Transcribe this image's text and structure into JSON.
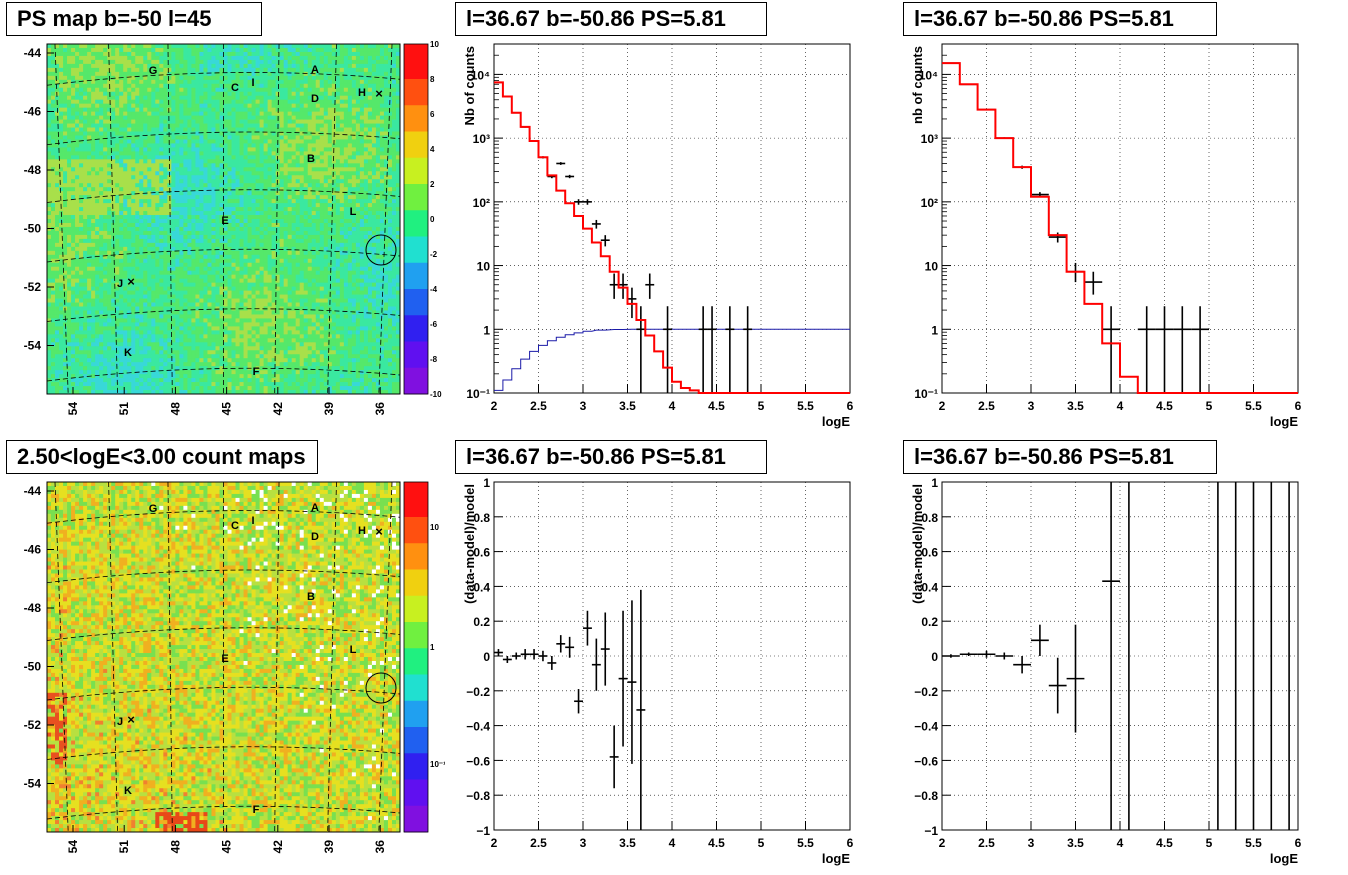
{
  "titles": {
    "map_ps": "PS map b=-50 l=45",
    "map_counts": "2.50<logE<3.00 count maps",
    "spec_left": "l=36.67 b=-50.86 PS=5.81",
    "spec_right": "l=36.67 b=-50.86 PS=5.81",
    "res_left": "l=36.67 b=-50.86 PS=5.81",
    "res_right": "l=36.67 b=-50.86 PS=5.81"
  },
  "colors": {
    "model_line": "#ff0000",
    "ps_line": "#1a1aa8",
    "data_points": "#000000",
    "grid": "#000000"
  },
  "chart_data": [
    {
      "id": "map_ps",
      "type": "heatmap",
      "title": "PS map b=-50 l=45",
      "y_ticks": [
        "-44",
        "-46",
        "-48",
        "-50",
        "-52",
        "-54"
      ],
      "x_ticks": [
        "54",
        "51",
        "48",
        "45",
        "42",
        "39",
        "36"
      ],
      "colorbar_ticks": [
        "10",
        "8",
        "6",
        "4",
        "2",
        "0",
        "-2",
        "-4",
        "-6",
        "-8",
        "-10"
      ],
      "zlim": [
        -10,
        10
      ],
      "source_labels": [
        "G",
        "A",
        "C",
        "I",
        "D",
        "H",
        "B",
        "L",
        "E",
        "J",
        "K",
        "F"
      ]
    },
    {
      "id": "map_counts",
      "type": "heatmap",
      "title": "2.50<logE<3.00 count maps",
      "y_ticks": [
        "-44",
        "-46",
        "-48",
        "-50",
        "-52",
        "-54"
      ],
      "x_ticks": [
        "54",
        "51",
        "48",
        "45",
        "42",
        "39",
        "36"
      ],
      "colorbar_ticks": [
        "10",
        "1",
        "10⁻¹"
      ],
      "zscale": "log",
      "source_labels": [
        "G",
        "A",
        "C",
        "I",
        "D",
        "H",
        "B",
        "L",
        "E",
        "J",
        "K",
        "F"
      ]
    },
    {
      "id": "spec_left",
      "type": "line",
      "title": "l=36.67 b=-50.86 PS=5.81",
      "xlabel": "logE",
      "ylabel": "Nb of counts",
      "xlim": [
        2,
        6
      ],
      "ylim": [
        0.1,
        30000
      ],
      "yscale": "log",
      "x_ticks": [
        "2",
        "2.5",
        "3",
        "3.5",
        "4",
        "4.5",
        "5",
        "5.5",
        "6"
      ],
      "y_ticks": [
        "10⁻¹",
        "1",
        "10",
        "10²",
        "10³",
        "10⁴"
      ],
      "grid": true,
      "model_step": {
        "edges": [
          2,
          2.1,
          2.2,
          2.3,
          2.4,
          2.5,
          2.6,
          2.7,
          2.8,
          2.9,
          3,
          3.1,
          3.2,
          3.3,
          3.4,
          3.5,
          3.6,
          3.7,
          3.8,
          3.9,
          4,
          4.1,
          4.2,
          4.3,
          6
        ],
        "values": [
          7500,
          4500,
          2500,
          1500,
          900,
          500,
          260,
          150,
          95,
          60,
          38,
          23,
          14,
          8,
          4.5,
          2.5,
          1.4,
          0.8,
          0.45,
          0.25,
          0.15,
          0.12,
          0.11,
          0.1
        ]
      },
      "ps_curve": {
        "x": [
          2.05,
          2.15,
          2.25,
          2.35,
          2.45,
          2.55,
          2.65,
          2.75,
          2.85,
          2.95,
          3.05,
          3.2,
          3.4,
          3.6,
          4,
          6
        ],
        "y": [
          0.11,
          0.16,
          0.24,
          0.34,
          0.45,
          0.56,
          0.66,
          0.75,
          0.82,
          0.88,
          0.93,
          0.97,
          0.99,
          1,
          1,
          1
        ]
      },
      "data_points": [
        {
          "x": 2.05,
          "y": 7500,
          "ex": 0.05,
          "ey": [
            7400,
            7600
          ]
        },
        {
          "x": 2.15,
          "y": 4500,
          "ex": 0.05,
          "ey": [
            4400,
            4600
          ]
        },
        {
          "x": 2.25,
          "y": 2500,
          "ex": 0.05,
          "ey": [
            2450,
            2550
          ]
        },
        {
          "x": 2.35,
          "y": 1500,
          "ex": 0.05,
          "ey": [
            1460,
            1540
          ]
        },
        {
          "x": 2.45,
          "y": 900,
          "ex": 0.05,
          "ey": [
            870,
            930
          ]
        },
        {
          "x": 2.55,
          "y": 500,
          "ex": 0.05,
          "ey": [
            480,
            520
          ]
        },
        {
          "x": 2.65,
          "y": 250,
          "ex": 0.05,
          "ey": [
            235,
            265
          ]
        },
        {
          "x": 2.75,
          "y": 400,
          "ex": 0.05,
          "ey": [
            380,
            420
          ]
        },
        {
          "x": 2.85,
          "y": 250,
          "ex": 0.05,
          "ey": [
            235,
            265
          ]
        },
        {
          "x": 2.95,
          "y": 100,
          "ex": 0.05,
          "ey": [
            90,
            110
          ]
        },
        {
          "x": 3.05,
          "y": 100,
          "ex": 0.05,
          "ey": [
            90,
            110
          ]
        },
        {
          "x": 3.15,
          "y": 45,
          "ex": 0.05,
          "ey": [
            38,
            52
          ]
        },
        {
          "x": 3.25,
          "y": 25,
          "ex": 0.05,
          "ey": [
            20,
            30
          ]
        },
        {
          "x": 3.35,
          "y": 5,
          "ex": 0.05,
          "ey": [
            3,
            7.5
          ]
        },
        {
          "x": 3.45,
          "y": 5,
          "ex": 0.05,
          "ey": [
            3,
            7.5
          ]
        },
        {
          "x": 3.55,
          "y": 3,
          "ex": 0.05,
          "ey": [
            1.5,
            4.5
          ]
        },
        {
          "x": 3.75,
          "y": 5,
          "ex": 0.05,
          "ey": [
            3,
            7.5
          ]
        },
        {
          "x": 3.65,
          "y": 1,
          "ex": 0.05,
          "ey": [
            0.1,
            2.3
          ]
        },
        {
          "x": 3.95,
          "y": 1,
          "ex": 0.05,
          "ey": [
            0.1,
            2.3
          ]
        },
        {
          "x": 4.35,
          "y": 1,
          "ex": 0.05,
          "ey": [
            0.1,
            2.3
          ]
        },
        {
          "x": 4.45,
          "y": 1,
          "ex": 0.05,
          "ey": [
            0.1,
            2.3
          ]
        },
        {
          "x": 4.65,
          "y": 1,
          "ex": 0.05,
          "ey": [
            0.1,
            2.3
          ]
        },
        {
          "x": 4.85,
          "y": 1,
          "ex": 0.05,
          "ey": [
            0.1,
            2.3
          ]
        }
      ]
    },
    {
      "id": "spec_right",
      "type": "line",
      "title": "l=36.67 b=-50.86 PS=5.81",
      "xlabel": "logE",
      "ylabel": "nb of counts",
      "xlim": [
        2,
        6
      ],
      "ylim": [
        0.1,
        30000
      ],
      "yscale": "log",
      "x_ticks": [
        "2",
        "2.5",
        "3",
        "3.5",
        "4",
        "4.5",
        "5",
        "5.5",
        "6"
      ],
      "y_ticks": [
        "10⁻¹",
        "1",
        "10",
        "10²",
        "10³",
        "10⁴"
      ],
      "grid": true,
      "model_step": {
        "edges": [
          2,
          2.2,
          2.4,
          2.6,
          2.8,
          3,
          3.2,
          3.4,
          3.6,
          3.8,
          4,
          4.2,
          6
        ],
        "values": [
          15000,
          7000,
          2800,
          1000,
          350,
          120,
          30,
          8,
          2.5,
          0.6,
          0.18,
          0.1
        ]
      },
      "data_points": [
        {
          "x": 2.1,
          "y": 15000,
          "ex": 0.1,
          "ey": [
            14800,
            15200
          ]
        },
        {
          "x": 2.3,
          "y": 7000,
          "ex": 0.1,
          "ey": [
            6900,
            7100
          ]
        },
        {
          "x": 2.5,
          "y": 2800,
          "ex": 0.1,
          "ey": [
            2740,
            2860
          ]
        },
        {
          "x": 2.7,
          "y": 1000,
          "ex": 0.1,
          "ey": [
            970,
            1030
          ]
        },
        {
          "x": 2.9,
          "y": 350,
          "ex": 0.1,
          "ey": [
            330,
            370
          ]
        },
        {
          "x": 3.1,
          "y": 130,
          "ex": 0.1,
          "ey": [
            118,
            142
          ]
        },
        {
          "x": 3.3,
          "y": 28,
          "ex": 0.1,
          "ey": [
            23,
            33
          ]
        },
        {
          "x": 3.5,
          "y": 8,
          "ex": 0.1,
          "ey": [
            5.5,
            11
          ]
        },
        {
          "x": 3.7,
          "y": 5.5,
          "ex": 0.1,
          "ey": [
            3.5,
            8
          ]
        },
        {
          "x": 3.9,
          "y": 1,
          "ex": 0.1,
          "ey": [
            0.1,
            2.3
          ]
        },
        {
          "x": 4.3,
          "y": 1,
          "ex": 0.1,
          "ey": [
            0.1,
            2.3
          ]
        },
        {
          "x": 4.5,
          "y": 1,
          "ex": 0.1,
          "ey": [
            0.1,
            2.3
          ]
        },
        {
          "x": 4.7,
          "y": 1,
          "ex": 0.1,
          "ey": [
            0.1,
            2.3
          ]
        },
        {
          "x": 4.9,
          "y": 1,
          "ex": 0.1,
          "ey": [
            0.1,
            2.3
          ]
        }
      ]
    },
    {
      "id": "res_left",
      "type": "scatter",
      "title": "l=36.67 b=-50.86 PS=5.81",
      "xlabel": "logE",
      "ylabel": "(data-model)/model",
      "xlim": [
        2,
        6
      ],
      "ylim": [
        -1,
        1
      ],
      "x_ticks": [
        "2",
        "2.5",
        "3",
        "3.5",
        "4",
        "4.5",
        "5",
        "5.5",
        "6"
      ],
      "y_ticks": [
        "−1",
        "−0.8",
        "−0.6",
        "−0.4",
        "−0.2",
        "0",
        "0.2",
        "0.4",
        "0.6",
        "0.8",
        "1"
      ],
      "grid": true,
      "data_points": [
        {
          "x": 2.05,
          "y": 0.02,
          "ex": 0.05,
          "ey": [
            0.0,
            0.04
          ]
        },
        {
          "x": 2.15,
          "y": -0.02,
          "ex": 0.05,
          "ey": [
            -0.04,
            0.0
          ]
        },
        {
          "x": 2.25,
          "y": 0.0,
          "ex": 0.05,
          "ey": [
            -0.02,
            0.02
          ]
        },
        {
          "x": 2.35,
          "y": 0.01,
          "ex": 0.05,
          "ey": [
            -0.02,
            0.04
          ]
        },
        {
          "x": 2.45,
          "y": 0.01,
          "ex": 0.05,
          "ey": [
            -0.02,
            0.04
          ]
        },
        {
          "x": 2.55,
          "y": 0.0,
          "ex": 0.05,
          "ey": [
            -0.03,
            0.03
          ]
        },
        {
          "x": 2.65,
          "y": -0.04,
          "ex": 0.05,
          "ey": [
            -0.08,
            0.0
          ]
        },
        {
          "x": 2.75,
          "y": 0.07,
          "ex": 0.05,
          "ey": [
            0.02,
            0.12
          ]
        },
        {
          "x": 2.85,
          "y": 0.05,
          "ex": 0.05,
          "ey": [
            -0.01,
            0.11
          ]
        },
        {
          "x": 2.95,
          "y": -0.26,
          "ex": 0.05,
          "ey": [
            -0.33,
            -0.19
          ]
        },
        {
          "x": 3.05,
          "y": 0.16,
          "ex": 0.05,
          "ey": [
            0.06,
            0.26
          ]
        },
        {
          "x": 3.15,
          "y": -0.05,
          "ex": 0.05,
          "ey": [
            -0.2,
            0.1
          ]
        },
        {
          "x": 3.25,
          "y": 0.04,
          "ex": 0.05,
          "ey": [
            -0.17,
            0.25
          ]
        },
        {
          "x": 3.35,
          "y": -0.58,
          "ex": 0.05,
          "ey": [
            -0.76,
            -0.4
          ]
        },
        {
          "x": 3.45,
          "y": -0.13,
          "ex": 0.05,
          "ey": [
            -0.52,
            0.26
          ]
        },
        {
          "x": 3.55,
          "y": -0.15,
          "ex": 0.05,
          "ey": [
            -0.62,
            0.32
          ]
        },
        {
          "x": 3.65,
          "y": -0.31,
          "ex": 0.05,
          "ey": [
            -1.0,
            0.38
          ]
        }
      ]
    },
    {
      "id": "res_right",
      "type": "scatter",
      "title": "l=36.67 b=-50.86 PS=5.81",
      "xlabel": "logE",
      "ylabel": "(data-model)/model",
      "xlim": [
        2,
        6
      ],
      "ylim": [
        -1,
        1
      ],
      "x_ticks": [
        "2",
        "2.5",
        "3",
        "3.5",
        "4",
        "4.5",
        "5",
        "5.5",
        "6"
      ],
      "y_ticks": [
        "−1",
        "−0.8",
        "−0.6",
        "−0.4",
        "−0.2",
        "0",
        "0.2",
        "0.4",
        "0.6",
        "0.8",
        "1"
      ],
      "grid": true,
      "data_points": [
        {
          "x": 2.1,
          "y": 0.0,
          "ex": 0.1,
          "ey": [
            -0.01,
            0.01
          ]
        },
        {
          "x": 2.3,
          "y": 0.01,
          "ex": 0.1,
          "ey": [
            0.0,
            0.02
          ]
        },
        {
          "x": 2.5,
          "y": 0.01,
          "ex": 0.1,
          "ey": [
            -0.01,
            0.03
          ]
        },
        {
          "x": 2.7,
          "y": 0.0,
          "ex": 0.1,
          "ey": [
            -0.02,
            0.02
          ]
        },
        {
          "x": 2.9,
          "y": -0.05,
          "ex": 0.1,
          "ey": [
            -0.1,
            0.0
          ]
        },
        {
          "x": 3.1,
          "y": 0.09,
          "ex": 0.1,
          "ey": [
            0.0,
            0.18
          ]
        },
        {
          "x": 3.3,
          "y": -0.17,
          "ex": 0.1,
          "ey": [
            -0.33,
            -0.01
          ]
        },
        {
          "x": 3.5,
          "y": -0.13,
          "ex": 0.1,
          "ey": [
            -0.44,
            0.18
          ]
        },
        {
          "x": 3.9,
          "y": 0.43,
          "ex": 0.1,
          "ey": [
            -1.0,
            1.0
          ]
        },
        {
          "x": 4.1,
          "y": 1.0,
          "ex": 0.0,
          "ey": [
            -1.0,
            1.0
          ]
        },
        {
          "x": 5.1,
          "y": 1.0,
          "ex": 0.0,
          "ey": [
            -1.0,
            1.0
          ]
        },
        {
          "x": 5.3,
          "y": 1.0,
          "ex": 0.0,
          "ey": [
            -1.0,
            1.0
          ]
        },
        {
          "x": 5.5,
          "y": 1.0,
          "ex": 0.0,
          "ey": [
            -1.0,
            1.0
          ]
        },
        {
          "x": 5.7,
          "y": 1.0,
          "ex": 0.0,
          "ey": [
            -1.0,
            1.0
          ]
        },
        {
          "x": 5.9,
          "y": 1.0,
          "ex": 0.0,
          "ey": [
            -1.0,
            1.0
          ]
        }
      ]
    }
  ]
}
